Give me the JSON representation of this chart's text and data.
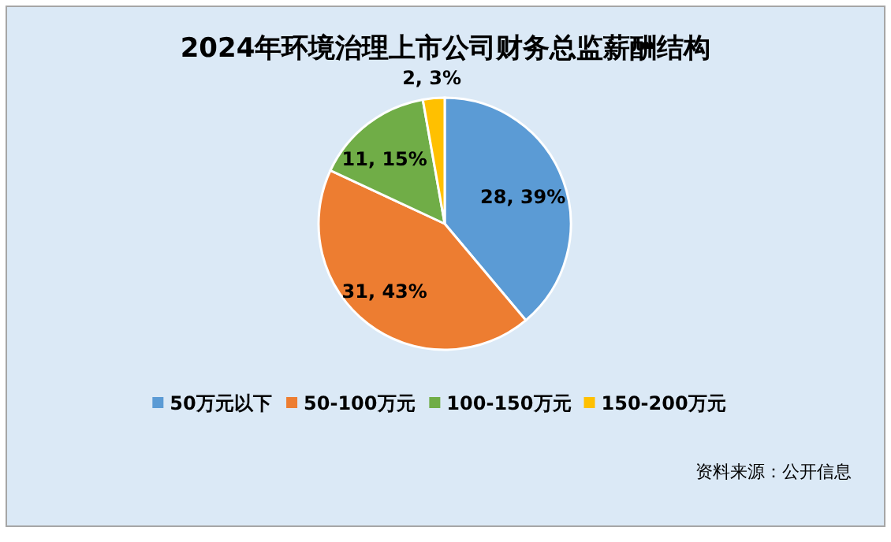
{
  "chart_data": {
    "type": "pie",
    "title": "2024年环境治理上市公司财务总监薪酬结构",
    "categories": [
      "50万元以下",
      "50-100万元",
      "100-150万元",
      "150-200万元"
    ],
    "values": [
      28,
      31,
      11,
      2
    ],
    "colors": [
      "#5b9bd5",
      "#ed7d31",
      "#70ad47",
      "#ffc000"
    ],
    "value_labels": [
      "28, 39%",
      "31, 43%",
      "11, 15%",
      "2, 3%"
    ],
    "legend": "bottom",
    "annotations": [
      "资料来源：公开信息"
    ]
  }
}
